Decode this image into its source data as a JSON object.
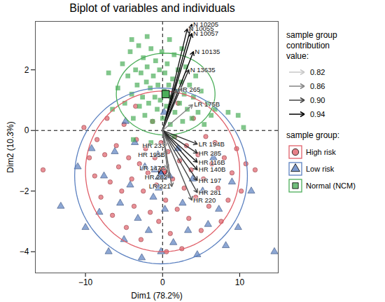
{
  "chart_data": {
    "type": "biplot",
    "title": "Biplot of variables and individuals",
    "x_label": "Dim1 (78.2%)",
    "y_label": "Dim2 (10.3%)",
    "xlim": [
      -16.5,
      15
    ],
    "ylim": [
      -4.7,
      3.6
    ],
    "xticks": [
      -10,
      0,
      10
    ],
    "yticks": [
      -4,
      -2,
      0,
      2
    ],
    "grid": false,
    "contribution_title": "sample group contribution value:",
    "contribution_ticks": [
      0.82,
      0.86,
      0.9,
      0.94
    ],
    "group_title": "sample group:",
    "series": [
      {
        "name": "High risk",
        "color": "#e0606a",
        "marker": "circle",
        "ellipse": {
          "center": [
            0,
            -1.35
          ],
          "radii": [
            10,
            2.65
          ]
        },
        "values": [
          [
            -15.5,
            -1.3
          ],
          [
            -10.2,
            0.1
          ],
          [
            -9.5,
            -0.9
          ],
          [
            -8.8,
            -1.5
          ],
          [
            -8.5,
            -0.3
          ],
          [
            -8.0,
            -2.2
          ],
          [
            -7.5,
            -0.8
          ],
          [
            -7.2,
            0.4
          ],
          [
            -6.8,
            -1.7
          ],
          [
            -6.5,
            -2.8
          ],
          [
            -6.0,
            -0.5
          ],
          [
            -5.7,
            -1.2
          ],
          [
            -5.3,
            -2.0
          ],
          [
            -5.0,
            0.2
          ],
          [
            -4.7,
            -3.2
          ],
          [
            -4.4,
            -0.9
          ],
          [
            -4.0,
            -1.6
          ],
          [
            -3.7,
            -2.5
          ],
          [
            -3.4,
            -0.3
          ],
          [
            -3.0,
            -1.1
          ],
          [
            -2.8,
            -3.6
          ],
          [
            -2.5,
            -2.0
          ],
          [
            -2.2,
            -0.6
          ],
          [
            -1.9,
            -1.4
          ],
          [
            -1.6,
            -2.7
          ],
          [
            -1.3,
            0.3
          ],
          [
            -1.0,
            -0.9
          ],
          [
            -0.8,
            -1.8
          ],
          [
            -0.5,
            -3.0
          ],
          [
            -0.2,
            -0.4
          ],
          [
            0.1,
            -1.3
          ],
          [
            0.4,
            -2.3
          ],
          [
            0.7,
            -0.7
          ],
          [
            1.0,
            -3.4
          ],
          [
            1.3,
            -1.6
          ],
          [
            1.6,
            -0.2
          ],
          [
            1.9,
            -2.6
          ],
          [
            2.2,
            -1.0
          ],
          [
            2.5,
            -3.9
          ],
          [
            2.8,
            -1.9
          ],
          [
            3.1,
            -0.5
          ],
          [
            3.4,
            -2.9
          ],
          [
            3.7,
            -1.3
          ],
          [
            4.0,
            0.4
          ],
          [
            4.3,
            -2.2
          ],
          [
            4.6,
            -0.8
          ],
          [
            5.0,
            -3.3
          ],
          [
            5.3,
            -1.6
          ],
          [
            5.6,
            -0.2
          ],
          [
            6.0,
            -2.5
          ],
          [
            6.4,
            -1.1
          ],
          [
            6.8,
            -0.4
          ],
          [
            7.2,
            -1.9
          ],
          [
            7.6,
            -3.0
          ],
          [
            8.0,
            -0.9
          ],
          [
            8.5,
            -2.3
          ],
          [
            9.0,
            -1.4
          ],
          [
            9.6,
            -0.6
          ],
          [
            10.2,
            -2.0
          ],
          [
            10.8,
            -1.1
          ],
          [
            12.0,
            -1.3
          ],
          [
            -3.5,
            0.8
          ],
          [
            2.0,
            0.9
          ],
          [
            0.5,
            -4.0
          ]
        ]
      },
      {
        "name": "Low risk",
        "color": "#5b80c0",
        "marker": "triangle",
        "ellipse": {
          "center": [
            -0.2,
            -1.5
          ],
          "radii": [
            11.2,
            2.9
          ]
        },
        "values": [
          [
            -13.2,
            -2.5
          ],
          [
            -11.0,
            -1.2
          ],
          [
            -10.0,
            -3.2
          ],
          [
            -9.2,
            -0.6
          ],
          [
            -8.2,
            -2.7
          ],
          [
            -7.6,
            -1.5
          ],
          [
            -7.0,
            -4.0
          ],
          [
            -6.2,
            -0.7
          ],
          [
            -5.5,
            -2.4
          ],
          [
            -5.0,
            -3.6
          ],
          [
            -4.2,
            -1.8
          ],
          [
            -3.6,
            -0.4
          ],
          [
            -3.2,
            -2.9
          ],
          [
            -2.7,
            -4.2
          ],
          [
            -2.3,
            -1.2
          ],
          [
            -1.8,
            -3.3
          ],
          [
            -1.2,
            -2.2
          ],
          [
            -0.6,
            -0.8
          ],
          [
            -0.2,
            -4.0
          ],
          [
            0.3,
            -2.6
          ],
          [
            0.9,
            -1.5
          ],
          [
            1.4,
            -3.7
          ],
          [
            2.0,
            -0.6
          ],
          [
            2.6,
            -2.4
          ],
          [
            3.3,
            -3.3
          ],
          [
            3.9,
            -1.6
          ],
          [
            4.5,
            -4.1
          ],
          [
            5.2,
            -2.0
          ],
          [
            5.9,
            -3.1
          ],
          [
            6.6,
            -0.9
          ],
          [
            7.3,
            -2.6
          ],
          [
            8.2,
            -3.8
          ],
          [
            9.0,
            -1.7
          ],
          [
            9.8,
            -3.2
          ],
          [
            11.5,
            -2.0
          ],
          [
            14.5,
            -4.0
          ],
          [
            -1.0,
            -1.3
          ],
          [
            -0.5,
            -1.9
          ],
          [
            0.2,
            0.6
          ],
          [
            -4.8,
            0.3
          ]
        ]
      },
      {
        "name": "Normal (NCM)",
        "color": "#4cae5a",
        "marker": "square",
        "ellipse": {
          "center": [
            0.4,
            1.2
          ],
          "radii": [
            6.4,
            1.35
          ]
        },
        "values": [
          [
            -5.8,
            1.4
          ],
          [
            -5.2,
            2.2
          ],
          [
            -4.9,
            0.9
          ],
          [
            -4.5,
            1.8
          ],
          [
            -4.2,
            2.6
          ],
          [
            -4.0,
            1.2
          ],
          [
            -3.8,
            0.4
          ],
          [
            -3.5,
            2.0
          ],
          [
            -3.3,
            1.5
          ],
          [
            -3.1,
            2.8
          ],
          [
            -3.0,
            0.8
          ],
          [
            -2.8,
            1.9
          ],
          [
            -2.6,
            1.1
          ],
          [
            -2.5,
            2.4
          ],
          [
            -2.3,
            0.5
          ],
          [
            -2.1,
            1.6
          ],
          [
            -2.0,
            2.1
          ],
          [
            -1.8,
            0.9
          ],
          [
            -1.6,
            1.4
          ],
          [
            -1.5,
            2.7
          ],
          [
            -1.3,
            0.3
          ],
          [
            -1.2,
            1.8
          ],
          [
            -1.0,
            1.1
          ],
          [
            -0.9,
            2.3
          ],
          [
            -0.7,
            0.7
          ],
          [
            -0.6,
            1.5
          ],
          [
            -0.4,
            2.0
          ],
          [
            -0.3,
            1.0
          ],
          [
            -0.1,
            2.6
          ],
          [
            0.0,
            0.4
          ],
          [
            0.2,
            1.3
          ],
          [
            0.3,
            1.9
          ],
          [
            0.5,
            0.8
          ],
          [
            0.6,
            2.2
          ],
          [
            0.8,
            1.5
          ],
          [
            1.0,
            0.2
          ],
          [
            1.1,
            1.1
          ],
          [
            1.3,
            1.7
          ],
          [
            1.5,
            2.5
          ],
          [
            1.6,
            0.6
          ],
          [
            1.8,
            1.3
          ],
          [
            2.0,
            2.0
          ],
          [
            2.2,
            0.9
          ],
          [
            2.4,
            1.6
          ],
          [
            2.6,
            0.3
          ],
          [
            2.8,
            1.2
          ],
          [
            3.0,
            2.1
          ],
          [
            3.2,
            0.7
          ],
          [
            3.5,
            1.5
          ],
          [
            3.8,
            0.4
          ],
          [
            4.0,
            1.1
          ],
          [
            4.3,
            1.8
          ],
          [
            4.6,
            0.6
          ],
          [
            5.0,
            1.3
          ],
          [
            5.4,
            0.2
          ],
          [
            5.8,
            0.9
          ],
          [
            6.3,
            0.5
          ],
          [
            6.8,
            0.7
          ],
          [
            -6.5,
            0.7
          ],
          [
            -4.0,
            3.0
          ],
          [
            -2.0,
            3.1
          ],
          [
            0.9,
            3.0
          ],
          [
            2.5,
            2.7
          ],
          [
            -7.0,
            1.9
          ],
          [
            -3.8,
            -0.3
          ],
          [
            1.5,
            -0.2
          ],
          [
            -1.5,
            -0.4
          ],
          [
            8.5,
            0.6
          ],
          [
            9.8,
            0.5
          ],
          [
            10.5,
            0.1
          ]
        ]
      }
    ],
    "variables": [
      {
        "name": "N 10055",
        "x": 3.2,
        "y": 3.35,
        "contribution": 0.93
      },
      {
        "name": "N 10205",
        "x": 3.8,
        "y": 3.5,
        "contribution": 0.95
      },
      {
        "name": "N 10057",
        "x": 3.8,
        "y": 3.2,
        "contribution": 0.95
      },
      {
        "name": "N 10135",
        "x": 4.0,
        "y": 2.6,
        "contribution": 0.94
      },
      {
        "name": "N 13635",
        "x": 3.4,
        "y": 2.0,
        "contribution": 0.92
      },
      {
        "name": "HR 265",
        "x": 1.8,
        "y": 1.35,
        "contribution": 0.88
      },
      {
        "name": "LR 175B",
        "x": 3.9,
        "y": 0.85,
        "contribution": 0.86
      },
      {
        "name": "LR 194B",
        "x": 4.5,
        "y": -0.45,
        "contribution": 0.91
      },
      {
        "name": "HR 285",
        "x": 4.5,
        "y": -0.75,
        "contribution": 0.91
      },
      {
        "name": "HR 116B",
        "x": 4.5,
        "y": -1.05,
        "contribution": 0.92
      },
      {
        "name": "HR 140B",
        "x": 4.5,
        "y": -1.3,
        "contribution": 0.92
      },
      {
        "name": "HR 197",
        "x": 4.5,
        "y": -1.65,
        "contribution": 0.91
      },
      {
        "name": "HR 281",
        "x": 4.5,
        "y": -2.05,
        "contribution": 0.9
      },
      {
        "name": "HR 220",
        "x": 3.8,
        "y": -2.3,
        "contribution": 0.89
      },
      {
        "name": "HR 233",
        "x": 0.5,
        "y": -0.5,
        "contribution": 0.84
      },
      {
        "name": "HR 195B",
        "x": 0.5,
        "y": -0.8,
        "contribution": 0.85
      },
      {
        "name": "LR 147C",
        "x": 0.6,
        "y": -1.25,
        "contribution": 0.86
      },
      {
        "name": "HR 282",
        "x": 0.8,
        "y": -1.55,
        "contribution": 0.87
      },
      {
        "name": "LR 221",
        "x": 1.2,
        "y": -1.85,
        "contribution": 0.88
      }
    ]
  }
}
